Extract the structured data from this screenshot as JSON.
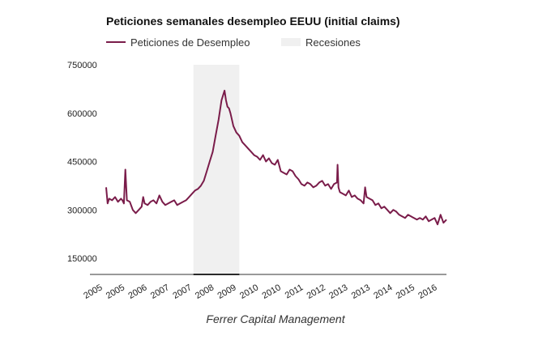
{
  "chart_data": {
    "type": "line",
    "title": "Peticiones semanales desempleo EEUU (initial claims)",
    "xlabel": "",
    "ylabel": "",
    "legend_position": "top-left",
    "grid": false,
    "ylim": [
      100000,
      750000
    ],
    "y_ticks": [
      150000,
      300000,
      450000,
      600000,
      750000
    ],
    "x_tick_labels": [
      "2005",
      "2005",
      "2006",
      "2007",
      "2007",
      "2008",
      "2009",
      "2010",
      "2010",
      "2011",
      "2012",
      "2013",
      "2013",
      "2014",
      "2015",
      "2016"
    ],
    "colors": {
      "series": "#7a1c4a",
      "recession": "#f0f0f0"
    },
    "series": [
      {
        "name": "Peticiones de Desempleo",
        "x": [
          2005.0,
          2005.05,
          2005.1,
          2005.2,
          2005.3,
          2005.4,
          2005.5,
          2005.55,
          2005.6,
          2005.65,
          2005.7,
          2005.8,
          2005.9,
          2006.0,
          2006.1,
          2006.2,
          2006.25,
          2006.3,
          2006.4,
          2006.5,
          2006.6,
          2006.7,
          2006.8,
          2006.9,
          2007.0,
          2007.1,
          2007.2,
          2007.3,
          2007.4,
          2007.5,
          2007.6,
          2007.7,
          2007.8,
          2007.9,
          2008.0,
          2008.1,
          2008.2,
          2008.3,
          2008.4,
          2008.5,
          2008.6,
          2008.7,
          2008.8,
          2008.9,
          2009.0,
          2009.05,
          2009.1,
          2009.15,
          2009.2,
          2009.25,
          2009.3,
          2009.4,
          2009.5,
          2009.6,
          2009.7,
          2009.8,
          2009.9,
          2010.0,
          2010.1,
          2010.2,
          2010.3,
          2010.4,
          2010.5,
          2010.6,
          2010.7,
          2010.8,
          2010.9,
          2011.0,
          2011.1,
          2011.2,
          2011.3,
          2011.4,
          2011.5,
          2011.6,
          2011.7,
          2011.8,
          2011.9,
          2012.0,
          2012.1,
          2012.2,
          2012.3,
          2012.4,
          2012.5,
          2012.6,
          2012.7,
          2012.8,
          2012.82,
          2012.85,
          2012.9,
          2013.0,
          2013.1,
          2013.2,
          2013.3,
          2013.4,
          2013.5,
          2013.6,
          2013.7,
          2013.75,
          2013.8,
          2013.9,
          2014.0,
          2014.1,
          2014.2,
          2014.3,
          2014.4,
          2014.5,
          2014.6,
          2014.7,
          2014.8,
          2014.9,
          2015.0,
          2015.1,
          2015.2,
          2015.3,
          2015.4,
          2015.5,
          2015.6,
          2015.7,
          2015.8,
          2015.9,
          2016.0,
          2016.1,
          2016.2,
          2016.3,
          2016.4,
          2016.5
        ],
        "values": [
          370000,
          320000,
          335000,
          330000,
          340000,
          325000,
          335000,
          330000,
          320000,
          425000,
          330000,
          325000,
          300000,
          290000,
          300000,
          310000,
          340000,
          320000,
          315000,
          325000,
          330000,
          320000,
          345000,
          325000,
          315000,
          320000,
          325000,
          330000,
          315000,
          320000,
          325000,
          330000,
          340000,
          350000,
          360000,
          365000,
          375000,
          390000,
          420000,
          450000,
          480000,
          530000,
          580000,
          640000,
          670000,
          640000,
          620000,
          615000,
          600000,
          580000,
          560000,
          540000,
          530000,
          510000,
          500000,
          490000,
          480000,
          470000,
          465000,
          455000,
          470000,
          450000,
          460000,
          445000,
          440000,
          455000,
          420000,
          415000,
          410000,
          425000,
          420000,
          405000,
          395000,
          380000,
          375000,
          385000,
          380000,
          370000,
          375000,
          385000,
          390000,
          375000,
          380000,
          365000,
          380000,
          385000,
          440000,
          370000,
          355000,
          350000,
          345000,
          360000,
          340000,
          345000,
          335000,
          330000,
          320000,
          370000,
          340000,
          335000,
          330000,
          315000,
          320000,
          305000,
          310000,
          300000,
          290000,
          300000,
          295000,
          285000,
          280000,
          275000,
          285000,
          280000,
          275000,
          270000,
          275000,
          270000,
          280000,
          265000,
          270000,
          275000,
          255000,
          285000,
          260000,
          270000
        ]
      }
    ],
    "recessions": [
      {
        "name": "Recesiones",
        "start": 2007.95,
        "end": 2009.5
      }
    ],
    "footer": "Ferrer Capital Management"
  }
}
